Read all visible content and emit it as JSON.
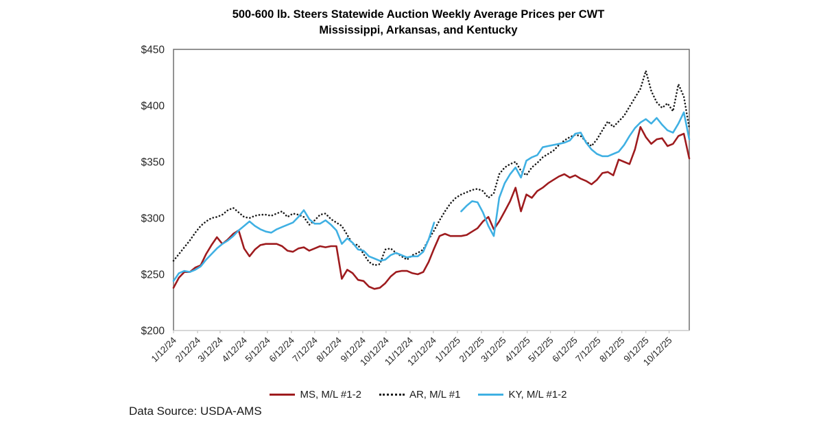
{
  "footer": {
    "source_text": "Data Source: USDA-AMS"
  },
  "chart_data": {
    "type": "line",
    "title": "500-600 lb. Steers Statewide Auction Weekly Average Prices per CWT",
    "subtitle": "Mississippi, Arkansas, and Kentucky",
    "xlabel": "",
    "ylabel": "",
    "x_unit": "weekly",
    "grid": false,
    "legend_position": "bottom",
    "ylim": [
      200,
      450
    ],
    "y_ticks": [
      {
        "value": 200,
        "label": "$200"
      },
      {
        "value": 250,
        "label": "$250"
      },
      {
        "value": 300,
        "label": "$300"
      },
      {
        "value": 350,
        "label": "$350"
      },
      {
        "value": 400,
        "label": "$400"
      },
      {
        "value": 450,
        "label": "$450"
      }
    ],
    "x_tick_labels": [
      "1/12/24",
      "2/12/24",
      "3/12/24",
      "4/12/24",
      "5/12/24",
      "6/12/24",
      "7/12/24",
      "8/12/24",
      "9/12/24",
      "10/12/24",
      "11/12/24",
      "12/12/24",
      "1/12/25",
      "2/12/25",
      "3/12/25",
      "4/12/25",
      "5/12/25",
      "6/12/25",
      "7/12/25",
      "8/12/25",
      "9/12/25",
      "10/12/25"
    ],
    "x_tick_days": [
      0,
      31,
      60,
      91,
      121,
      152,
      182,
      213,
      244,
      274,
      305,
      335,
      366,
      397,
      425,
      456,
      486,
      517,
      547,
      578,
      609,
      639
    ],
    "span_days": 665,
    "n_points": 96,
    "series": [
      {
        "name": "MS, M/L #1-2",
        "color": "#9E1B1E",
        "style": "solid",
        "values": [
          238,
          247,
          252,
          252,
          256,
          258,
          268,
          276,
          283,
          277,
          281,
          286,
          289,
          273,
          266,
          272,
          276,
          277,
          277,
          277,
          275,
          271,
          270,
          273,
          274,
          271,
          273,
          275,
          274,
          275,
          275,
          246,
          254,
          251,
          245,
          244,
          239,
          237,
          238,
          242,
          248,
          252,
          253,
          253,
          251,
          250,
          252,
          261,
          273,
          284,
          286,
          284,
          284,
          284,
          285,
          288,
          291,
          297,
          301,
          290,
          297,
          306,
          315,
          327,
          306,
          321,
          318,
          324,
          327,
          331,
          334,
          337,
          339,
          336,
          338,
          335,
          333,
          330,
          334,
          340,
          341,
          338,
          352,
          350,
          348,
          361,
          381,
          372,
          366,
          370,
          371,
          364,
          366,
          373,
          375,
          353
        ]
      },
      {
        "name": "AR, M/L #1",
        "color": "#1a1a1a",
        "style": "dotted",
        "values": [
          262,
          268,
          274,
          280,
          287,
          293,
          297,
          300,
          301,
          303,
          307,
          309,
          305,
          301,
          300,
          302,
          303,
          303,
          302,
          304,
          306,
          301,
          304,
          303,
          301,
          294,
          298,
          303,
          304,
          299,
          296,
          293,
          285,
          277,
          276,
          268,
          261,
          258,
          259,
          272,
          273,
          269,
          266,
          263,
          267,
          269,
          272,
          281,
          289,
          298,
          306,
          313,
          318,
          321,
          323,
          325,
          326,
          324,
          318,
          322,
          339,
          345,
          348,
          350,
          342,
          338,
          345,
          349,
          354,
          357,
          360,
          365,
          369,
          372,
          374,
          373,
          368,
          364,
          370,
          378,
          386,
          381,
          386,
          391,
          399,
          407,
          415,
          431,
          413,
          403,
          398,
          402,
          395,
          419,
          408,
          380
        ]
      },
      {
        "name": "KY, M/L #1-2",
        "color": "#3FB0E3",
        "style": "solid",
        "values": [
          244,
          251,
          253,
          252,
          254,
          257,
          263,
          268,
          273,
          277,
          280,
          284,
          289,
          293,
          297,
          293,
          290,
          288,
          287,
          290,
          292,
          294,
          296,
          301,
          307,
          299,
          295,
          295,
          298,
          294,
          289,
          277,
          282,
          278,
          272,
          271,
          266,
          264,
          262,
          263,
          267,
          269,
          267,
          265,
          266,
          266,
          270,
          281,
          296,
          null,
          null,
          null,
          null,
          306,
          311,
          315,
          314,
          305,
          293,
          284,
          318,
          331,
          339,
          345,
          336,
          351,
          354,
          356,
          363,
          364,
          365,
          366,
          367,
          369,
          375,
          376,
          367,
          361,
          357,
          355,
          355,
          357,
          359,
          365,
          373,
          380,
          385,
          388,
          384,
          389,
          383,
          378,
          376,
          384,
          394,
          370
        ]
      }
    ]
  }
}
